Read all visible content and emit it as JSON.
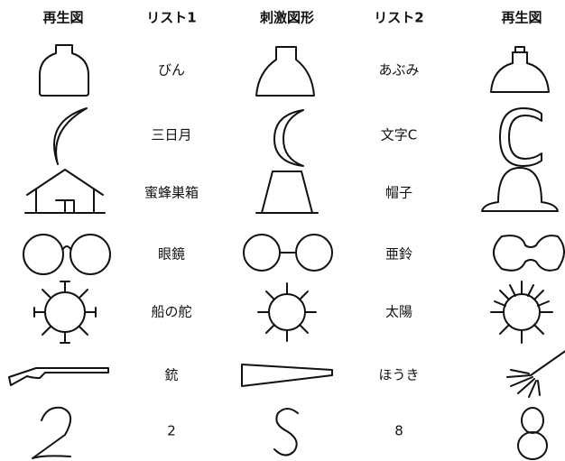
{
  "header": {
    "columns": [
      "再生図",
      "リスト1",
      "刺激図形",
      "リスト2",
      "再生図"
    ]
  },
  "rows": [
    {
      "list1": "びん",
      "list2": "あぶみ"
    },
    {
      "list1": "三日月",
      "list2": "文字C"
    },
    {
      "list1": "蜜蜂巣箱",
      "list2": "帽子"
    },
    {
      "list1": "眼鏡",
      "list2": "亜鈴"
    },
    {
      "list1": "船の舵",
      "list2": "太陽"
    },
    {
      "list1": "銃",
      "list2": "ほうき"
    },
    {
      "list1": "2",
      "list2": "8"
    }
  ]
}
